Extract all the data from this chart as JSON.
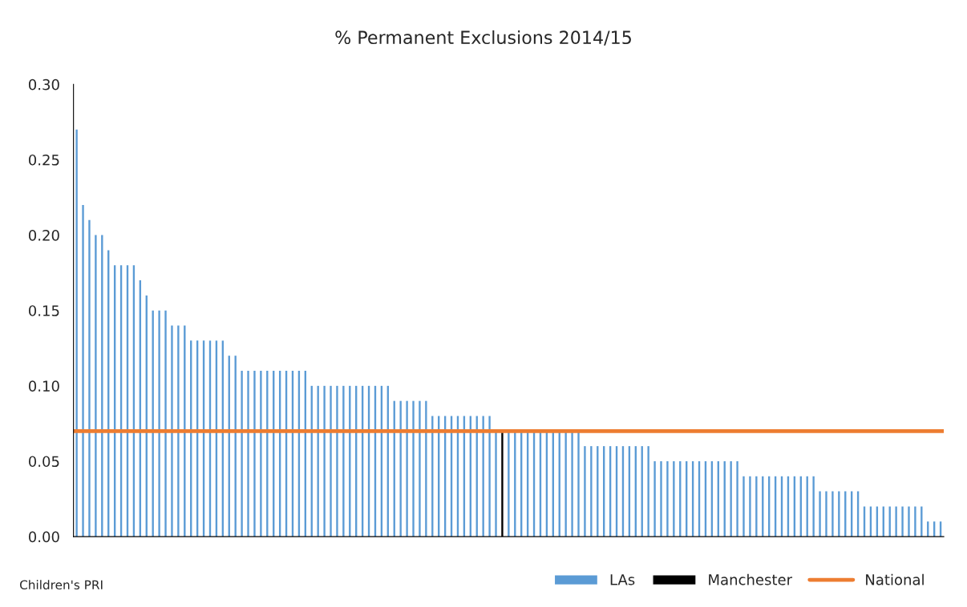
{
  "chart_data": {
    "type": "bar",
    "title": "% Permanent Exclusions 2014/15",
    "categories": [
      null,
      null,
      null,
      null,
      null,
      null,
      null,
      null,
      null,
      null,
      null,
      null,
      null,
      null,
      null,
      null,
      null,
      null,
      null,
      null,
      null,
      null,
      null,
      null,
      null,
      null,
      null,
      null,
      null,
      null,
      null,
      null,
      null,
      null,
      null,
      null,
      null,
      null,
      null,
      null,
      null,
      null,
      null,
      null,
      null,
      null,
      null,
      null,
      null,
      null,
      null,
      null,
      null,
      null,
      null,
      null,
      null,
      null,
      null,
      null,
      null,
      null,
      null,
      null,
      null,
      null,
      null,
      null,
      null,
      null,
      null,
      null,
      null,
      null,
      null,
      null,
      null,
      null,
      null,
      null,
      null,
      null,
      null,
      null,
      null,
      null,
      null,
      null,
      null,
      null,
      null,
      null,
      null,
      null,
      null,
      null,
      null,
      null,
      null,
      null,
      null,
      null,
      null,
      null,
      null,
      null,
      null,
      null,
      null,
      null,
      null,
      null,
      null,
      null,
      null,
      null,
      null,
      null,
      null,
      null,
      null,
      null,
      null,
      null,
      null,
      null,
      null,
      null,
      null,
      null,
      null,
      null,
      null,
      null,
      null,
      null,
      null
    ],
    "series": [
      {
        "name": "LAs",
        "color": "#5b9bd5",
        "values": [
          0.27,
          0.22,
          0.21,
          0.2,
          0.2,
          0.19,
          0.18,
          0.18,
          0.18,
          0.18,
          0.17,
          0.16,
          0.15,
          0.15,
          0.15,
          0.14,
          0.14,
          0.14,
          0.13,
          0.13,
          0.13,
          0.13,
          0.13,
          0.13,
          0.12,
          0.12,
          0.11,
          0.11,
          0.11,
          0.11,
          0.11,
          0.11,
          0.11,
          0.11,
          0.11,
          0.11,
          0.11,
          0.1,
          0.1,
          0.1,
          0.1,
          0.1,
          0.1,
          0.1,
          0.1,
          0.1,
          0.1,
          0.1,
          0.1,
          0.1,
          0.09,
          0.09,
          0.09,
          0.09,
          0.09,
          0.09,
          0.08,
          0.08,
          0.08,
          0.08,
          0.08,
          0.08,
          0.08,
          0.08,
          0.08,
          0.08,
          0.07,
          null,
          0.07,
          0.07,
          0.07,
          0.07,
          0.07,
          0.07,
          0.07,
          0.07,
          0.07,
          0.07,
          0.07,
          0.07,
          0.06,
          0.06,
          0.06,
          0.06,
          0.06,
          0.06,
          0.06,
          0.06,
          0.06,
          0.06,
          0.06,
          0.05,
          0.05,
          0.05,
          0.05,
          0.05,
          0.05,
          0.05,
          0.05,
          0.05,
          0.05,
          0.05,
          0.05,
          0.05,
          0.05,
          0.04,
          0.04,
          0.04,
          0.04,
          0.04,
          0.04,
          0.04,
          0.04,
          0.04,
          0.04,
          0.04,
          0.04,
          0.03,
          0.03,
          0.03,
          0.03,
          0.03,
          0.03,
          0.03,
          0.02,
          0.02,
          0.02,
          0.02,
          0.02,
          0.02,
          0.02,
          0.02,
          0.02,
          0.02,
          0.01,
          0.01,
          0.01
        ]
      },
      {
        "name": "Manchester",
        "color": "#000000",
        "values": [
          null,
          null,
          null,
          null,
          null,
          null,
          null,
          null,
          null,
          null,
          null,
          null,
          null,
          null,
          null,
          null,
          null,
          null,
          null,
          null,
          null,
          null,
          null,
          null,
          null,
          null,
          null,
          null,
          null,
          null,
          null,
          null,
          null,
          null,
          null,
          null,
          null,
          null,
          null,
          null,
          null,
          null,
          null,
          null,
          null,
          null,
          null,
          null,
          null,
          null,
          null,
          null,
          null,
          null,
          null,
          null,
          null,
          null,
          null,
          null,
          null,
          null,
          null,
          null,
          null,
          null,
          null,
          0.07,
          null,
          null,
          null,
          null,
          null,
          null,
          null,
          null,
          null,
          null,
          null,
          null,
          null,
          null,
          null,
          null,
          null,
          null,
          null,
          null,
          null,
          null,
          null,
          null,
          null,
          null,
          null,
          null,
          null,
          null,
          null,
          null,
          null,
          null,
          null,
          null,
          null,
          null,
          null,
          null,
          null,
          null,
          null,
          null,
          null,
          null,
          null,
          null,
          null,
          null,
          null,
          null,
          null,
          null,
          null,
          null,
          null,
          null,
          null,
          null,
          null,
          null,
          null,
          null,
          null,
          null,
          null,
          null,
          null
        ]
      }
    ],
    "ref_lines": [
      {
        "axis": "y",
        "value": 0.07,
        "label": "National",
        "color": "#ed7d31",
        "line_style": "solid"
      }
    ],
    "ylim": [
      0,
      0.3
    ],
    "yticks": [
      {
        "value": 0,
        "label": "0.00"
      },
      {
        "value": 0.05,
        "label": "0.05"
      },
      {
        "value": 0.1,
        "label": "0.10"
      },
      {
        "value": 0.15,
        "label": "0.15"
      },
      {
        "value": 0.2,
        "label": "0.20"
      },
      {
        "value": 0.25,
        "label": "0.25"
      },
      {
        "value": 0.3,
        "label": "0.30"
      }
    ],
    "annotations": [
      "Children's PRI"
    ],
    "legend": "bottom right",
    "grid": false
  }
}
